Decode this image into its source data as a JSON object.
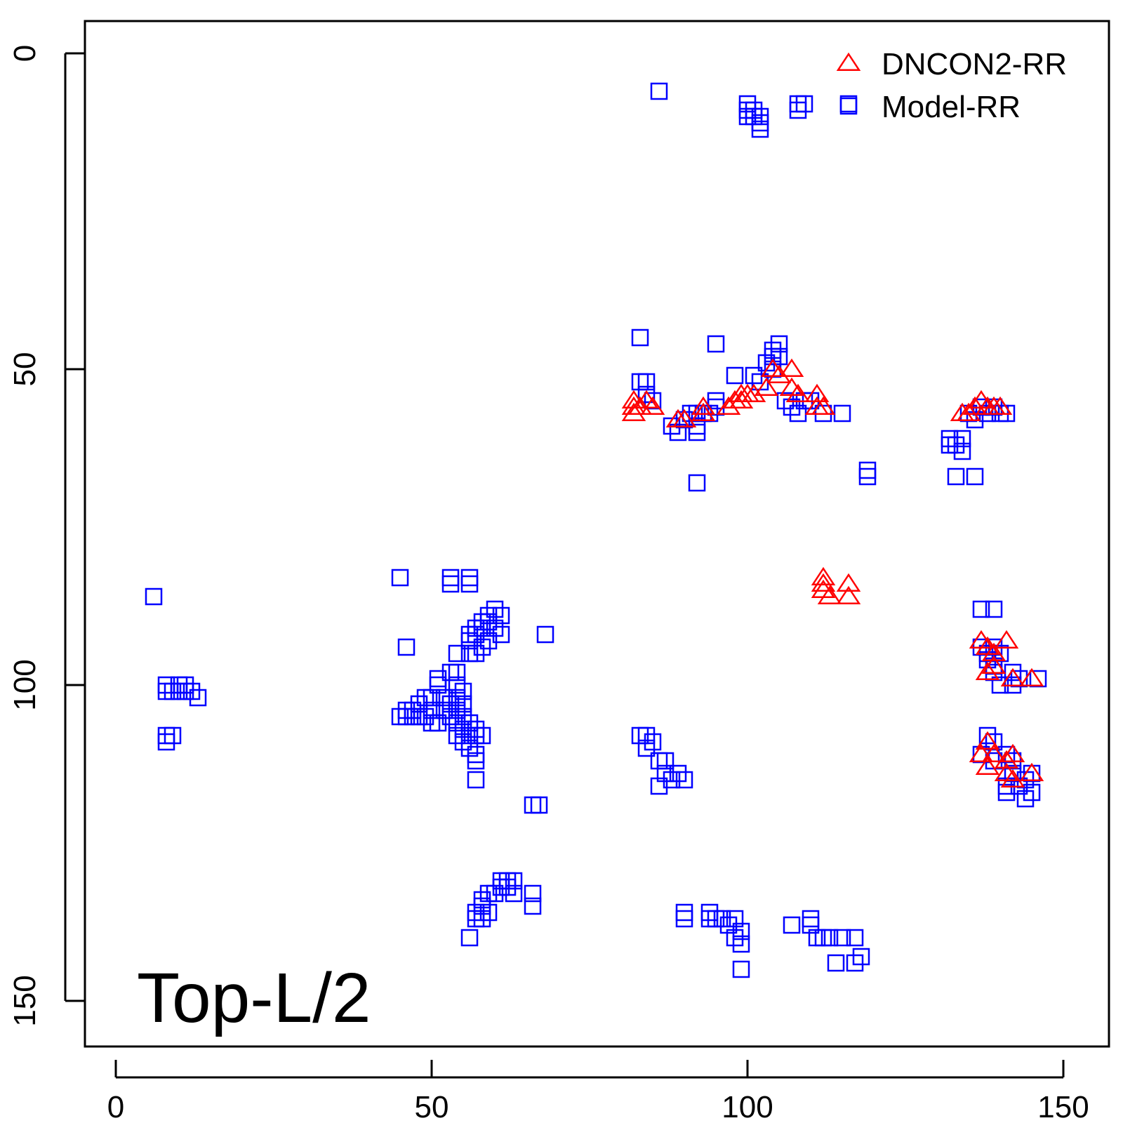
{
  "chart_data": {
    "type": "scatter",
    "title": "",
    "xlabel": "",
    "ylabel": "",
    "annotation": "Top-L/2",
    "xlim": [
      -5,
      152
    ],
    "ylim": [
      155,
      -5
    ],
    "x_ticks": [
      "0",
      "50",
      "100",
      "150"
    ],
    "y_ticks": [
      "0",
      "50",
      "100",
      "150"
    ],
    "x_tick_values": [
      0,
      50,
      100,
      150
    ],
    "y_tick_values": [
      0,
      50,
      100,
      150
    ],
    "grid": false,
    "legend_position": "top-right",
    "series": [
      {
        "name": "DNCON2-RR",
        "marker": "triangle",
        "color": "#ff0000",
        "points": [
          [
            82,
            55
          ],
          [
            82,
            56
          ],
          [
            82,
            57
          ],
          [
            83,
            56
          ],
          [
            84,
            55
          ],
          [
            85,
            56
          ],
          [
            89,
            58
          ],
          [
            90,
            58
          ],
          [
            93,
            56
          ],
          [
            93,
            57
          ],
          [
            97,
            56
          ],
          [
            98,
            55
          ],
          [
            99,
            54
          ],
          [
            99,
            55
          ],
          [
            100,
            54
          ],
          [
            101,
            54
          ],
          [
            103,
            53
          ],
          [
            104,
            50
          ],
          [
            105,
            51
          ],
          [
            107,
            50
          ],
          [
            107,
            53
          ],
          [
            108,
            54
          ],
          [
            111,
            54
          ],
          [
            111,
            56
          ],
          [
            112,
            56
          ],
          [
            134,
            57
          ],
          [
            135,
            57
          ],
          [
            136,
            56
          ],
          [
            137,
            55
          ],
          [
            138,
            56
          ],
          [
            139,
            56
          ],
          [
            140,
            56
          ],
          [
            112,
            83
          ],
          [
            112,
            84
          ],
          [
            112,
            85
          ],
          [
            113,
            86
          ],
          [
            116,
            84
          ],
          [
            116,
            86
          ],
          [
            137,
            93
          ],
          [
            138,
            94
          ],
          [
            139,
            95
          ],
          [
            139,
            97
          ],
          [
            138,
            98
          ],
          [
            141,
            93
          ],
          [
            142,
            99
          ],
          [
            145,
            99
          ],
          [
            138,
            109
          ],
          [
            137,
            111
          ],
          [
            139,
            111
          ],
          [
            138,
            113
          ],
          [
            141,
            112
          ],
          [
            141,
            114
          ],
          [
            142,
            111
          ],
          [
            142,
            115
          ],
          [
            145,
            114
          ]
        ]
      },
      {
        "name": "Model-RR",
        "marker": "square",
        "color": "#0000ff",
        "points": [
          [
            86,
            6
          ],
          [
            100,
            8
          ],
          [
            100,
            9
          ],
          [
            101,
            9
          ],
          [
            100,
            10
          ],
          [
            101,
            10
          ],
          [
            102,
            10
          ],
          [
            102,
            11
          ],
          [
            102,
            12
          ],
          [
            108,
            8
          ],
          [
            109,
            8
          ],
          [
            108,
            9
          ],
          [
            116,
            8
          ],
          [
            83,
            45
          ],
          [
            95,
            46
          ],
          [
            104,
            47
          ],
          [
            105,
            46
          ],
          [
            104,
            48
          ],
          [
            103,
            49
          ],
          [
            104,
            50
          ],
          [
            105,
            48
          ],
          [
            98,
            51
          ],
          [
            101,
            51
          ],
          [
            102,
            52
          ],
          [
            83,
            52
          ],
          [
            84,
            52
          ],
          [
            84,
            54
          ],
          [
            85,
            55
          ],
          [
            88,
            59
          ],
          [
            89,
            60
          ],
          [
            90,
            58
          ],
          [
            91,
            57
          ],
          [
            92,
            57
          ],
          [
            92,
            59
          ],
          [
            92,
            60
          ],
          [
            93,
            57
          ],
          [
            94,
            57
          ],
          [
            95,
            55
          ],
          [
            95,
            56
          ],
          [
            92,
            68
          ],
          [
            106,
            55
          ],
          [
            107,
            56
          ],
          [
            108,
            57
          ],
          [
            109,
            55
          ],
          [
            110,
            55
          ],
          [
            115,
            57
          ],
          [
            112,
            57
          ],
          [
            119,
            66
          ],
          [
            119,
            67
          ],
          [
            132,
            61
          ],
          [
            132,
            62
          ],
          [
            133,
            62
          ],
          [
            134,
            63
          ],
          [
            134,
            61
          ],
          [
            133,
            67
          ],
          [
            136,
            67
          ],
          [
            135,
            57
          ],
          [
            136,
            58
          ],
          [
            137,
            56
          ],
          [
            138,
            57
          ],
          [
            139,
            56
          ],
          [
            140,
            57
          ],
          [
            141,
            57
          ],
          [
            6,
            86
          ],
          [
            45,
            83
          ],
          [
            53,
            83
          ],
          [
            53,
            84
          ],
          [
            56,
            83
          ],
          [
            56,
            84
          ],
          [
            46,
            94
          ],
          [
            60,
            88
          ],
          [
            59,
            89
          ],
          [
            59,
            90
          ],
          [
            58,
            90
          ],
          [
            58,
            91
          ],
          [
            57,
            91
          ],
          [
            57,
            92
          ],
          [
            56,
            92
          ],
          [
            56,
            93
          ],
          [
            60,
            91
          ],
          [
            61,
            89
          ],
          [
            61,
            92
          ],
          [
            59,
            93
          ],
          [
            58,
            94
          ],
          [
            57,
            95
          ],
          [
            56,
            95
          ],
          [
            54,
            95
          ],
          [
            68,
            92
          ],
          [
            8,
            100
          ],
          [
            8,
            101
          ],
          [
            9,
            101
          ],
          [
            10,
            100
          ],
          [
            10,
            101
          ],
          [
            11,
            101
          ],
          [
            12,
            101
          ],
          [
            11,
            100
          ],
          [
            13,
            102
          ],
          [
            8,
            108
          ],
          [
            8,
            109
          ],
          [
            9,
            108
          ],
          [
            51,
            99
          ],
          [
            51,
            100
          ],
          [
            52,
            102
          ],
          [
            50,
            102
          ],
          [
            49,
            102
          ],
          [
            48,
            103
          ],
          [
            47,
            104
          ],
          [
            46,
            104
          ],
          [
            45,
            105
          ],
          [
            46,
            105
          ],
          [
            47,
            105
          ],
          [
            48,
            105
          ],
          [
            49,
            105
          ],
          [
            50,
            104
          ],
          [
            50,
            106
          ],
          [
            51,
            106
          ],
          [
            52,
            104
          ],
          [
            53,
            103
          ],
          [
            53,
            105
          ],
          [
            54,
            102
          ],
          [
            54,
            104
          ],
          [
            55,
            103
          ],
          [
            55,
            105
          ],
          [
            54,
            106
          ],
          [
            55,
            107
          ],
          [
            56,
            106
          ],
          [
            56,
            108
          ],
          [
            54,
            108
          ],
          [
            55,
            109
          ],
          [
            56,
            110
          ],
          [
            57,
            108
          ],
          [
            57,
            107
          ],
          [
            58,
            108
          ],
          [
            57,
            111
          ],
          [
            57,
            112
          ],
          [
            57,
            115
          ],
          [
            53,
            98
          ],
          [
            54,
            98
          ],
          [
            54,
            100
          ],
          [
            55,
            101
          ],
          [
            83,
            108
          ],
          [
            84,
            108
          ],
          [
            84,
            110
          ],
          [
            85,
            109
          ],
          [
            86,
            112
          ],
          [
            87,
            112
          ],
          [
            87,
            114
          ],
          [
            88,
            115
          ],
          [
            89,
            114
          ],
          [
            90,
            115
          ],
          [
            86,
            116
          ],
          [
            66,
            119
          ],
          [
            67,
            119
          ],
          [
            59,
            133
          ],
          [
            60,
            133
          ],
          [
            61,
            131
          ],
          [
            61,
            132
          ],
          [
            62,
            131
          ],
          [
            62,
            132
          ],
          [
            63,
            131
          ],
          [
            63,
            133
          ],
          [
            58,
            134
          ],
          [
            58,
            135
          ],
          [
            57,
            136
          ],
          [
            57,
            137
          ],
          [
            58,
            137
          ],
          [
            59,
            136
          ],
          [
            56,
            140
          ],
          [
            66,
            133
          ],
          [
            66,
            135
          ],
          [
            90,
            136
          ],
          [
            90,
            137
          ],
          [
            94,
            136
          ],
          [
            94,
            137
          ],
          [
            95,
            137
          ],
          [
            96,
            137
          ],
          [
            97,
            138
          ],
          [
            98,
            137
          ],
          [
            98,
            140
          ],
          [
            99,
            139
          ],
          [
            99,
            141
          ],
          [
            99,
            145
          ],
          [
            107,
            138
          ],
          [
            110,
            137
          ],
          [
            110,
            138
          ],
          [
            111,
            140
          ],
          [
            112,
            140
          ],
          [
            113,
            140
          ],
          [
            115,
            140
          ],
          [
            117,
            140
          ],
          [
            118,
            143
          ],
          [
            117,
            144
          ],
          [
            114,
            144
          ],
          [
            137,
            88
          ],
          [
            139,
            88
          ],
          [
            137,
            94
          ],
          [
            138,
            95
          ],
          [
            139,
            94
          ],
          [
            140,
            95
          ],
          [
            138,
            96
          ],
          [
            139,
            97
          ],
          [
            139,
            98
          ],
          [
            140,
            100
          ],
          [
            142,
            98
          ],
          [
            142,
            100
          ],
          [
            143,
            99
          ],
          [
            146,
            99
          ],
          [
            138,
            108
          ],
          [
            139,
            109
          ],
          [
            137,
            111
          ],
          [
            139,
            112
          ],
          [
            141,
            111
          ],
          [
            142,
            112
          ],
          [
            142,
            114
          ],
          [
            141,
            116
          ],
          [
            143,
            116
          ],
          [
            141,
            117
          ],
          [
            144,
            115
          ],
          [
            145,
            114
          ],
          [
            145,
            117
          ],
          [
            144,
            118
          ]
        ]
      }
    ]
  }
}
